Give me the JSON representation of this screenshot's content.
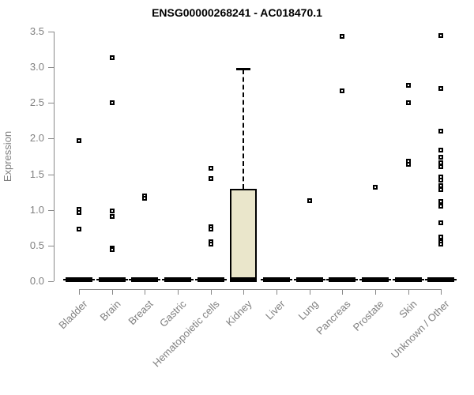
{
  "title": "ENSG00000268241 - AC018470.1",
  "chart_data": {
    "type": "box",
    "title": "ENSG00000268241 - AC018470.1",
    "xlabel": "",
    "ylabel": "Expression",
    "ylim": [
      0,
      3.5
    ],
    "yticks": [
      0.0,
      0.5,
      1.0,
      1.5,
      2.0,
      2.5,
      3.0,
      3.5
    ],
    "grid": false,
    "legend": "none",
    "box_fill_color": "#EAE6CB",
    "box_border_color": "#000000",
    "axis_color": "#888888",
    "tick_label_color": "#808080",
    "categories": [
      "Bladder",
      "Brain",
      "Breast",
      "Gastric",
      "Hematopoietic cells",
      "Kidney",
      "Liver",
      "Lung",
      "Pancreas",
      "Prostate",
      "Skin",
      "Unknown / Other"
    ],
    "series": [
      {
        "category": "Bladder",
        "q1": 0,
        "median": 0,
        "q3": 0,
        "whisker_low": 0,
        "whisker_high": 0,
        "outliers": [
          1.97,
          1.01,
          0.96,
          0.73
        ]
      },
      {
        "category": "Brain",
        "q1": 0,
        "median": 0,
        "q3": 0,
        "whisker_low": 0,
        "whisker_high": 0,
        "outliers": [
          3.13,
          2.5,
          0.99,
          0.91,
          0.47,
          0.44
        ]
      },
      {
        "category": "Breast",
        "q1": 0,
        "median": 0,
        "q3": 0,
        "whisker_low": 0,
        "whisker_high": 0,
        "outliers": [
          1.2,
          1.16
        ]
      },
      {
        "category": "Gastric",
        "q1": 0,
        "median": 0,
        "q3": 0,
        "whisker_low": 0,
        "whisker_high": 0,
        "outliers": []
      },
      {
        "category": "Hematopoietic cells",
        "q1": 0,
        "median": 0,
        "q3": 0,
        "whisker_low": 0,
        "whisker_high": 0,
        "outliers": [
          1.58,
          1.44,
          0.76,
          0.73,
          0.55,
          0.52
        ]
      },
      {
        "category": "Kidney",
        "q1": 0,
        "median": 0,
        "q3": 1.3,
        "whisker_low": 0,
        "whisker_high": 2.97,
        "outliers": []
      },
      {
        "category": "Liver",
        "q1": 0,
        "median": 0,
        "q3": 0,
        "whisker_low": 0,
        "whisker_high": 0,
        "outliers": []
      },
      {
        "category": "Lung",
        "q1": 0,
        "median": 0,
        "q3": 0,
        "whisker_low": 0,
        "whisker_high": 0,
        "outliers": [
          1.13
        ]
      },
      {
        "category": "Pancreas",
        "q1": 0,
        "median": 0,
        "q3": 0,
        "whisker_low": 0,
        "whisker_high": 0,
        "outliers": [
          3.43,
          2.67
        ]
      },
      {
        "category": "Prostate",
        "q1": 0,
        "median": 0,
        "q3": 0,
        "whisker_low": 0,
        "whisker_high": 0,
        "outliers": [
          1.32
        ]
      },
      {
        "category": "Skin",
        "q1": 0,
        "median": 0,
        "q3": 0,
        "whisker_low": 0,
        "whisker_high": 0,
        "outliers": [
          2.75,
          2.5,
          1.68,
          1.64
        ]
      },
      {
        "category": "Unknown / Other",
        "q1": 0,
        "median": 0,
        "q3": 0,
        "whisker_low": 0,
        "whisker_high": 0,
        "outliers": [
          3.45,
          2.7,
          2.1,
          1.84,
          1.74,
          1.66,
          1.61,
          1.46,
          1.42,
          1.34,
          1.29,
          1.12,
          1.05,
          0.82,
          0.62,
          0.58,
          0.55,
          0.52
        ]
      }
    ]
  }
}
